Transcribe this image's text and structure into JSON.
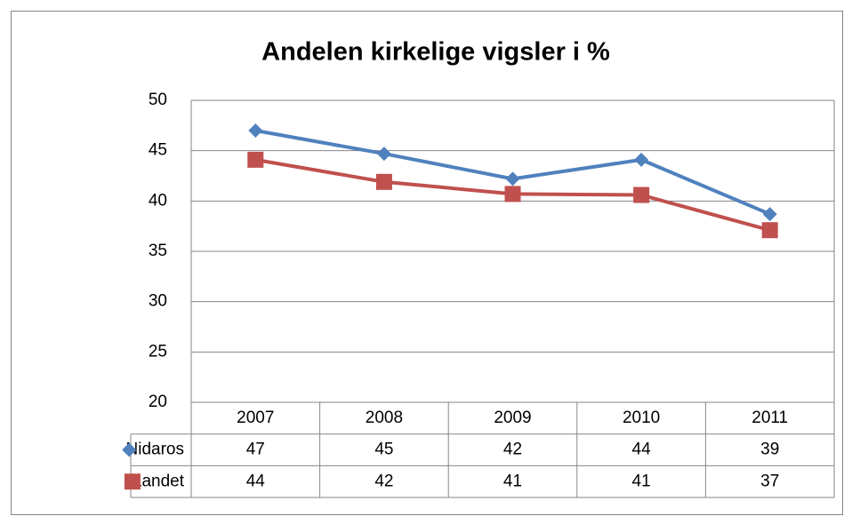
{
  "chart_data": {
    "type": "line",
    "title": "Andelen kirkelige vigsler i %",
    "categories": [
      "2007",
      "2008",
      "2009",
      "2010",
      "2011"
    ],
    "series": [
      {
        "name": "Nidaros",
        "color": "#4f81bd",
        "marker": "diamond",
        "values": [
          47.0,
          44.7,
          42.2,
          44.1,
          38.7
        ],
        "value_labels": [
          "47",
          "45",
          "42",
          "44",
          "39"
        ]
      },
      {
        "name": "Landet",
        "color": "#c0504d",
        "marker": "square",
        "values": [
          44.1,
          41.9,
          40.7,
          40.6,
          37.1
        ],
        "value_labels": [
          "44",
          "42",
          "41",
          "41",
          "37"
        ]
      }
    ],
    "ylim": [
      20,
      50
    ],
    "yticks": [
      20,
      25,
      30,
      35,
      40,
      45,
      50
    ],
    "grid": true
  }
}
